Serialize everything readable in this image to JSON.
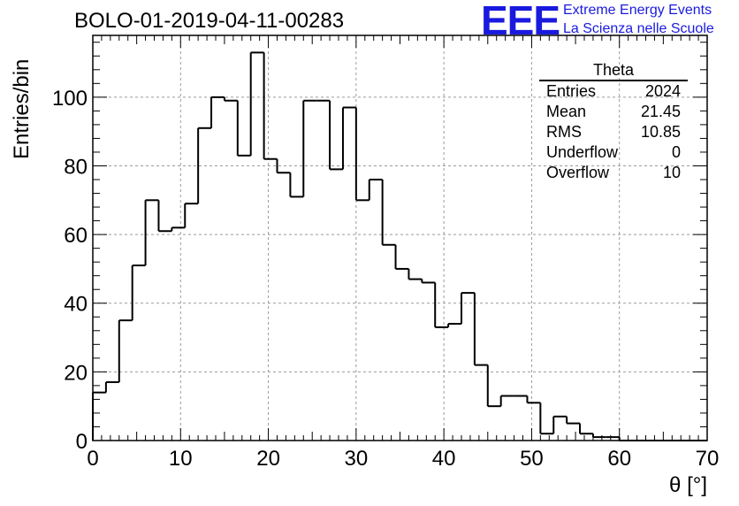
{
  "header": {
    "title": "BOLO-01-2019-04-11-00283",
    "logo_text": "EEE",
    "logo_line1": "Extreme Energy Events",
    "logo_line2": "La Scienza nelle Scuole",
    "logo_color": "#1a1adf"
  },
  "stats": {
    "name": "Theta",
    "rows": [
      {
        "label": "Entries",
        "value": "2024"
      },
      {
        "label": "Mean",
        "value": "21.45"
      },
      {
        "label": "RMS",
        "value": "10.85"
      },
      {
        "label": "Underflow",
        "value": "0"
      },
      {
        "label": "Overflow",
        "value": "10"
      }
    ]
  },
  "chart_data": {
    "type": "bar",
    "style": "step-histogram",
    "xlabel": "θ [°]",
    "ylabel": "Entries/bin",
    "xlim": [
      0,
      70
    ],
    "ylim": [
      0,
      118
    ],
    "grid": true,
    "bin_width": 1.5,
    "bin_edges_start": 0,
    "values": [
      14,
      17,
      35,
      51,
      70,
      61,
      62,
      69,
      91,
      100,
      99,
      83,
      113,
      82,
      78,
      71,
      99,
      99,
      79,
      97,
      70,
      76,
      57,
      50,
      47,
      46,
      33,
      34,
      43,
      22,
      10,
      13,
      13,
      11,
      2,
      7,
      5,
      2,
      1,
      1,
      0,
      0,
      0,
      0,
      0,
      0,
      0,
      0,
      0,
      0,
      0,
      0,
      0,
      0,
      0,
      0,
      0,
      0,
      0,
      0,
      0,
      0,
      0,
      0
    ],
    "xticks": [
      0,
      10,
      20,
      30,
      40,
      50,
      60,
      70
    ],
    "yticks": [
      0,
      20,
      40,
      60,
      80,
      100
    ]
  }
}
